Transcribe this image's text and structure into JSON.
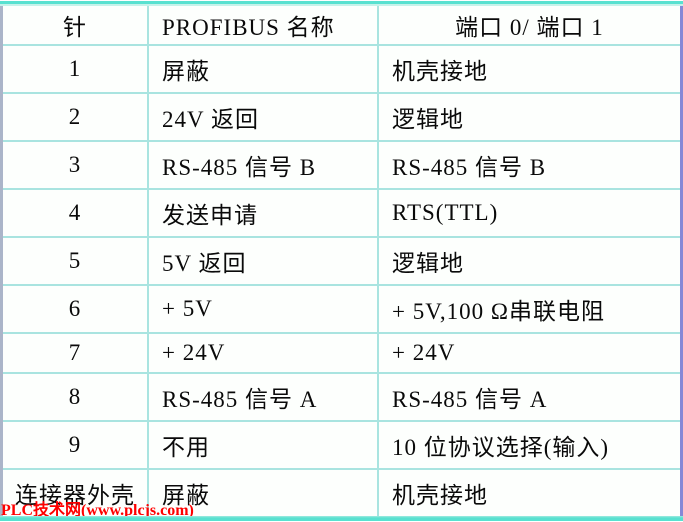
{
  "table": {
    "headers": [
      "针",
      "PROFIBUS 名称",
      "端口 0/ 端口 1"
    ],
    "rows": [
      [
        "1",
        "屏蔽",
        "机壳接地"
      ],
      [
        "2",
        "24V 返回",
        "逻辑地"
      ],
      [
        "3",
        "RS-485 信号 B",
        "RS-485 信号 B"
      ],
      [
        "4",
        "发送申请",
        "RTS(TTL)"
      ],
      [
        "5",
        "5V 返回",
        "逻辑地"
      ],
      [
        "6",
        "+ 5V",
        "+ 5V,100 Ω串联电阻"
      ],
      [
        "7",
        "+ 24V",
        "+ 24V"
      ],
      [
        "8",
        "RS-485 信号 A",
        "RS-485 信号 A"
      ],
      [
        "9",
        "不用",
        "10 位协议选择(输入)"
      ],
      [
        "连接器外壳",
        "屏蔽",
        "机壳接地"
      ]
    ]
  },
  "watermark": {
    "text": "PLC技术网(www.plcjs.com)"
  },
  "colors": {
    "band_turquoise": "#58e1d0",
    "grid_line": "#a9e4e0",
    "border_left": "#abb5c9",
    "border_right": "#8588d6",
    "watermark_red": "#ff0000",
    "cell_background": "#fdfffd",
    "text": "#0a0a0a"
  }
}
